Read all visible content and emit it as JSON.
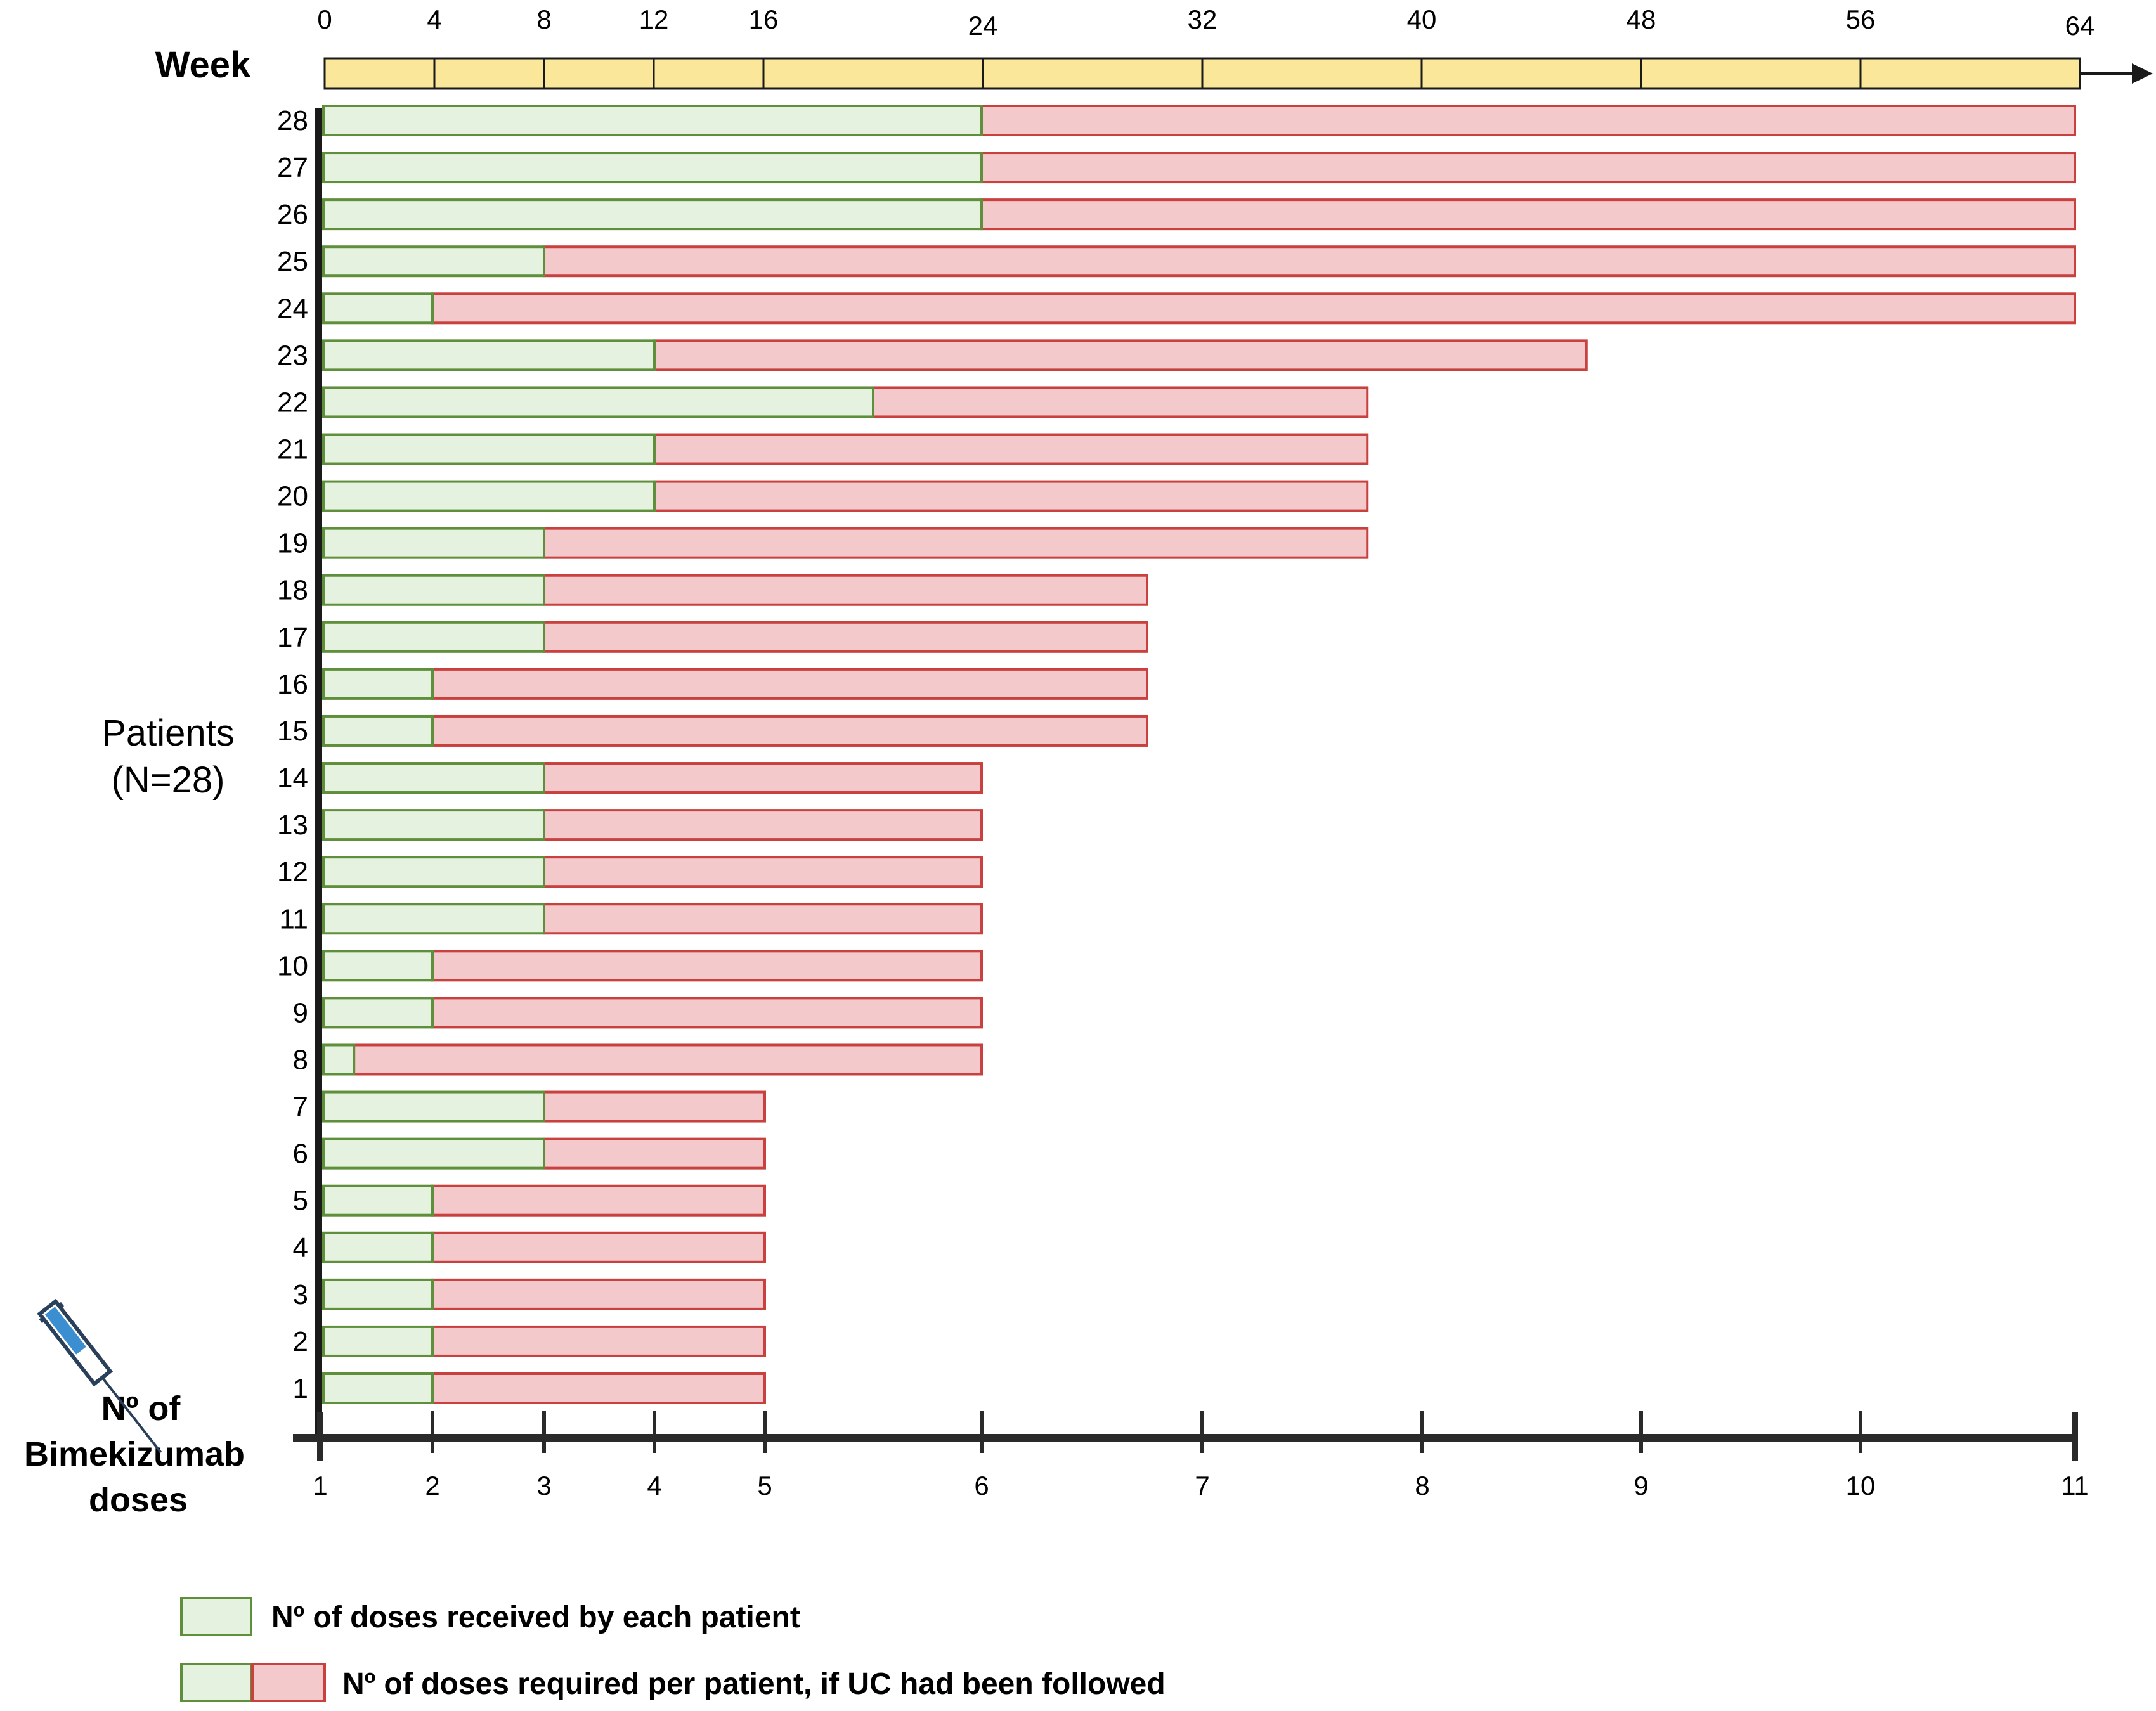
{
  "chart_data": {
    "type": "bar",
    "orientation": "horizontal-stacked",
    "week_axis": {
      "label": "Week",
      "ticks": [
        0,
        4,
        8,
        12,
        16,
        24,
        32,
        40,
        48,
        56,
        64
      ],
      "range": [
        0,
        64
      ]
    },
    "dose_axis": {
      "label_lines": [
        "Nº of",
        "Bimekizumab",
        "doses"
      ],
      "ticks": [
        1,
        2,
        3,
        4,
        5,
        6,
        7,
        8,
        9,
        10,
        11
      ],
      "range": [
        1,
        11
      ]
    },
    "patient_axis": {
      "label_lines": [
        "Patients",
        "(N=28)"
      ]
    },
    "categories": [
      "1",
      "2",
      "3",
      "4",
      "5",
      "6",
      "7",
      "8",
      "9",
      "10",
      "11",
      "12",
      "13",
      "14",
      "15",
      "16",
      "17",
      "18",
      "19",
      "20",
      "21",
      "22",
      "23",
      "24",
      "25",
      "26",
      "27",
      "28"
    ],
    "series": [
      {
        "name": "Nº of doses received by each patient",
        "color": "#e6f2e0",
        "stroke": "#5f8f3a",
        "values": [
          2,
          2,
          2,
          2,
          2,
          3,
          3,
          1.3,
          2,
          2,
          3,
          3,
          3,
          3,
          2,
          2,
          3,
          3,
          3,
          4,
          4,
          5.5,
          4,
          2,
          3,
          6,
          6,
          6
        ]
      },
      {
        "name": "Nº of doses required per patient, if UC had been followed",
        "color": "#f4c9cc",
        "stroke": "#c8413f",
        "values": [
          5,
          5,
          5,
          5,
          5,
          5,
          5,
          6,
          6,
          6,
          6,
          6,
          6,
          6,
          6.75,
          6.75,
          6.75,
          6.75,
          7.75,
          7.75,
          7.75,
          7.75,
          8.75,
          11,
          11,
          11,
          11,
          11
        ]
      }
    ],
    "legend": {
      "placement": "bottom-left",
      "received": "Nº of doses received by each patient",
      "required": "Nº of doses required per patient, if UC had been followed"
    }
  },
  "colors": {
    "week_bar": "#fbe79a",
    "received_fill": "#e6f2e0",
    "received_stroke": "#5f8f3a",
    "required_fill": "#f4c9cc",
    "required_stroke": "#c8413f",
    "syringe": "#3b8fd1"
  },
  "icons": {
    "syringe": "syringe-icon"
  }
}
